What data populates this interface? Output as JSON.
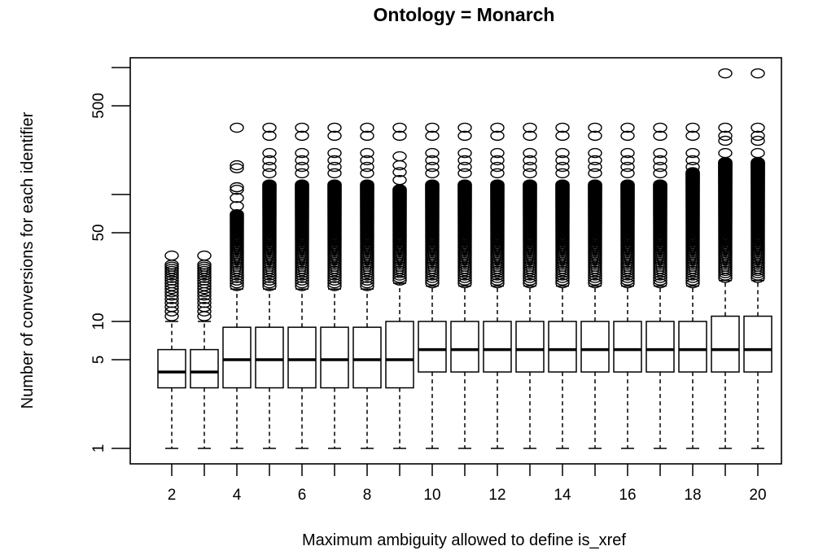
{
  "chart_data": {
    "type": "boxplot",
    "title": "Ontology = Monarch",
    "xlabel": "Maximum ambiguity allowed to define is_xref",
    "ylabel": "Number of conversions for each identifier",
    "y_scale": "log",
    "ylim": [
      0.75,
      1200
    ],
    "y_ticks": [
      1,
      5,
      10,
      50,
      100,
      500,
      1000
    ],
    "y_tick_labels": [
      "1",
      "5",
      "10",
      "50",
      "",
      "500",
      ""
    ],
    "x_tick_labels_shown": [
      "2",
      "4",
      "6",
      "8",
      "10",
      "12",
      "14",
      "16",
      "18",
      "20"
    ],
    "grid": false,
    "categories": [
      2,
      3,
      4,
      5,
      6,
      7,
      8,
      9,
      10,
      11,
      12,
      13,
      14,
      15,
      16,
      17,
      18,
      19,
      20
    ],
    "boxes": [
      {
        "min": 1,
        "q1": 3,
        "median": 4,
        "q3": 6,
        "max": 10,
        "outliers": {
          "dense_range": [
            11,
            28
          ],
          "sparse": [
            33
          ]
        }
      },
      {
        "min": 1,
        "q1": 3,
        "median": 4,
        "q3": 6,
        "max": 10,
        "outliers": {
          "dense_range": [
            11,
            28
          ],
          "sparse": [
            33
          ]
        }
      },
      {
        "min": 1,
        "q1": 3,
        "median": 5,
        "q3": 9,
        "max": 18,
        "outliers": {
          "dense_range": [
            19,
            70
          ],
          "sparse": [
            81,
            94,
            109,
            114,
            161,
            170,
            336
          ]
        }
      },
      {
        "min": 1,
        "q1": 3,
        "median": 5,
        "q3": 9,
        "max": 18,
        "outliers": {
          "dense_range": [
            19,
            120
          ],
          "sparse": [
            147,
            165,
            186,
            212,
            290,
            336
          ]
        }
      },
      {
        "min": 1,
        "q1": 3,
        "median": 5,
        "q3": 9,
        "max": 18,
        "outliers": {
          "dense_range": [
            19,
            120
          ],
          "sparse": [
            147,
            165,
            186,
            212,
            290,
            336
          ]
        }
      },
      {
        "min": 1,
        "q1": 3,
        "median": 5,
        "q3": 9,
        "max": 18,
        "outliers": {
          "dense_range": [
            19,
            120
          ],
          "sparse": [
            147,
            165,
            186,
            212,
            290,
            336
          ]
        }
      },
      {
        "min": 1,
        "q1": 3,
        "median": 5,
        "q3": 9,
        "max": 18,
        "outliers": {
          "dense_range": [
            19,
            120
          ],
          "sparse": [
            147,
            165,
            186,
            212,
            290,
            336
          ]
        }
      },
      {
        "min": 1,
        "q1": 3,
        "median": 5,
        "q3": 10,
        "max": 20,
        "outliers": {
          "dense_range": [
            21,
            110
          ],
          "sparse": [
            130,
            150,
            170,
            200,
            290,
            336
          ]
        }
      },
      {
        "min": 1,
        "q1": 4,
        "median": 6,
        "q3": 10,
        "max": 19,
        "outliers": {
          "dense_range": [
            20,
            120
          ],
          "sparse": [
            147,
            165,
            186,
            212,
            290,
            336
          ]
        }
      },
      {
        "min": 1,
        "q1": 4,
        "median": 6,
        "q3": 10,
        "max": 19,
        "outliers": {
          "dense_range": [
            20,
            120
          ],
          "sparse": [
            147,
            165,
            186,
            212,
            290,
            336
          ]
        }
      },
      {
        "min": 1,
        "q1": 4,
        "median": 6,
        "q3": 10,
        "max": 19,
        "outliers": {
          "dense_range": [
            20,
            120
          ],
          "sparse": [
            147,
            165,
            186,
            212,
            290,
            336
          ]
        }
      },
      {
        "min": 1,
        "q1": 4,
        "median": 6,
        "q3": 10,
        "max": 19,
        "outliers": {
          "dense_range": [
            20,
            120
          ],
          "sparse": [
            147,
            165,
            186,
            212,
            290,
            336
          ]
        }
      },
      {
        "min": 1,
        "q1": 4,
        "median": 6,
        "q3": 10,
        "max": 19,
        "outliers": {
          "dense_range": [
            20,
            120
          ],
          "sparse": [
            147,
            165,
            186,
            212,
            290,
            336
          ]
        }
      },
      {
        "min": 1,
        "q1": 4,
        "median": 6,
        "q3": 10,
        "max": 19,
        "outliers": {
          "dense_range": [
            20,
            120
          ],
          "sparse": [
            147,
            165,
            186,
            212,
            290,
            336
          ]
        }
      },
      {
        "min": 1,
        "q1": 4,
        "median": 6,
        "q3": 10,
        "max": 19,
        "outliers": {
          "dense_range": [
            20,
            120
          ],
          "sparse": [
            147,
            165,
            186,
            212,
            290,
            336
          ]
        }
      },
      {
        "min": 1,
        "q1": 4,
        "median": 6,
        "q3": 10,
        "max": 19,
        "outliers": {
          "dense_range": [
            20,
            120
          ],
          "sparse": [
            147,
            165,
            186,
            212,
            290,
            336
          ]
        }
      },
      {
        "min": 1,
        "q1": 4,
        "median": 6,
        "q3": 10,
        "max": 19,
        "outliers": {
          "dense_range": [
            20,
            150
          ],
          "sparse": [
            165,
            186,
            212,
            290,
            336
          ]
        }
      },
      {
        "min": 1,
        "q1": 4,
        "median": 6,
        "q3": 11,
        "max": 21,
        "outliers": {
          "dense_range": [
            22,
            180
          ],
          "sparse": [
            212,
            265,
            290,
            336,
            900
          ]
        }
      },
      {
        "min": 1,
        "q1": 4,
        "median": 6,
        "q3": 11,
        "max": 21,
        "outliers": {
          "dense_range": [
            22,
            180
          ],
          "sparse": [
            212,
            265,
            290,
            336,
            900
          ]
        }
      }
    ]
  }
}
